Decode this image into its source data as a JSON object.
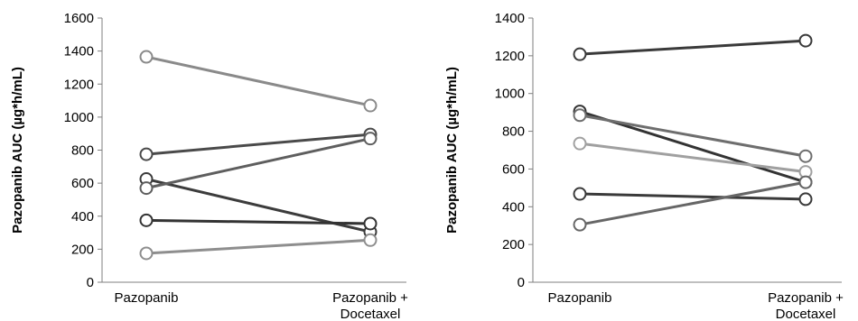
{
  "chart_data": [
    {
      "type": "line",
      "categories": [
        "Pazopanib",
        "Pazopanib + Docetaxel"
      ],
      "category_lines": [
        [
          "Pazopanib"
        ],
        [
          "Pazopanib +",
          "Docetaxel"
        ]
      ],
      "ylabel": "Pazopanib AUC (µg*h/mL)",
      "ylim": [
        0,
        1600
      ],
      "yticks": [
        "0",
        "200",
        "400",
        "600",
        "800",
        "1000",
        "1200",
        "1400",
        "1600"
      ],
      "grid": false,
      "series": [
        {
          "values": [
            1365,
            1070
          ],
          "color": "#8a8a8a"
        },
        {
          "values": [
            775,
            895
          ],
          "color": "#4a4a4a"
        },
        {
          "values": [
            625,
            305
          ],
          "color": "#3c3c3c"
        },
        {
          "values": [
            570,
            870
          ],
          "color": "#5e5e5e"
        },
        {
          "values": [
            375,
            355
          ],
          "color": "#333333"
        },
        {
          "values": [
            175,
            255
          ],
          "color": "#8e8e8e"
        }
      ]
    },
    {
      "type": "line",
      "categories": [
        "Pazopanib",
        "Pazopanib + Docetaxel"
      ],
      "category_lines": [
        [
          "Pazopanib"
        ],
        [
          "Pazopanib +",
          "Docetaxel"
        ]
      ],
      "ylabel": "Pazopanib AUC (µg*h/mL)",
      "ylim": [
        0,
        1400
      ],
      "yticks": [
        "0",
        "200",
        "400",
        "600",
        "800",
        "1000",
        "1200",
        "1400"
      ],
      "grid": false,
      "series": [
        {
          "values": [
            1208,
            1280
          ],
          "color": "#3a3a3a"
        },
        {
          "values": [
            905,
            530
          ],
          "color": "#333333"
        },
        {
          "values": [
            885,
            668
          ],
          "color": "#6e6e6e"
        },
        {
          "values": [
            735,
            585
          ],
          "color": "#a0a0a0"
        },
        {
          "values": [
            468,
            440
          ],
          "color": "#3a3a3a"
        },
        {
          "values": [
            305,
            530
          ],
          "color": "#666666"
        }
      ]
    }
  ]
}
